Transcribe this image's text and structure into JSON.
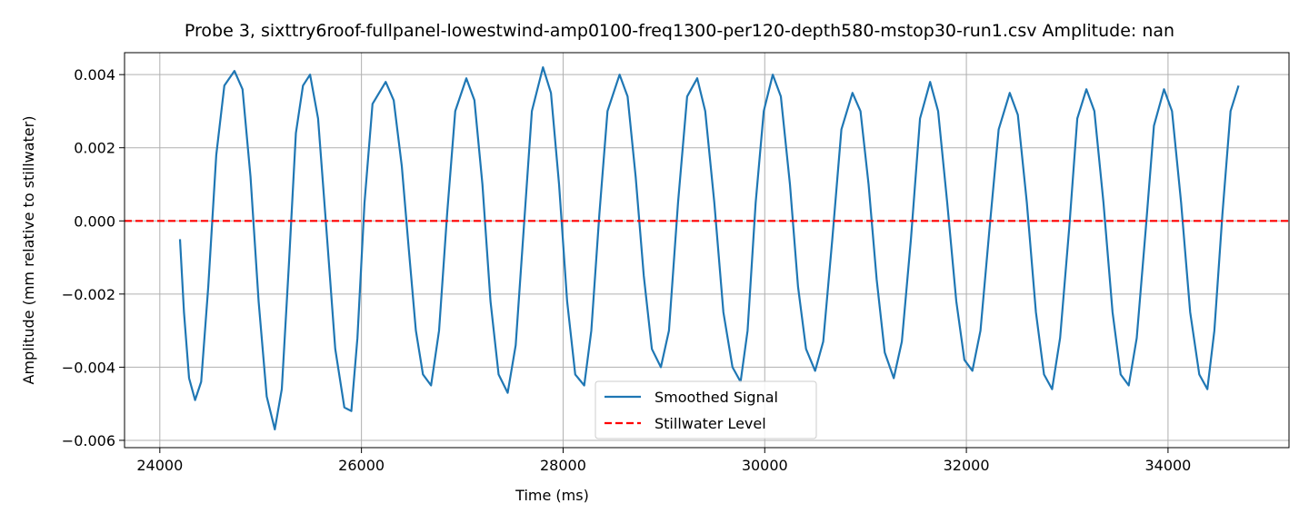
{
  "chart_data": {
    "type": "line",
    "title": "Probe 3, sixttry6roof-fullpanel-lowestwind-amp0100-freq1300-per120-depth580-mstop30-run1.csv Amplitude: nan",
    "xlabel": "Time (ms)",
    "ylabel": "Amplitude (mm relative to stillwater)",
    "xlim": [
      23650,
      35200
    ],
    "ylim": [
      -0.0062,
      0.0046
    ],
    "xticks": [
      24000,
      26000,
      28000,
      30000,
      32000,
      34000
    ],
    "xtick_labels": [
      "24000",
      "26000",
      "28000",
      "30000",
      "32000",
      "34000"
    ],
    "yticks": [
      -0.006,
      -0.004,
      -0.002,
      0.0,
      0.002,
      0.004
    ],
    "ytick_labels": [
      "−0.006",
      "−0.004",
      "−0.002",
      "0.000",
      "0.002",
      "0.004"
    ],
    "grid": true,
    "legend_position": "lower-center",
    "series": [
      {
        "name": "Smoothed Signal",
        "color": "#1f77b4",
        "style": "solid",
        "points": [
          [
            24200,
            -0.0005
          ],
          [
            24240,
            -0.0025
          ],
          [
            24290,
            -0.0043
          ],
          [
            24350,
            -0.0049
          ],
          [
            24410,
            -0.0044
          ],
          [
            24480,
            -0.0018
          ],
          [
            24560,
            0.0018
          ],
          [
            24640,
            0.0037
          ],
          [
            24740,
            0.0041
          ],
          [
            24820,
            0.0036
          ],
          [
            24900,
            0.0012
          ],
          [
            24980,
            -0.0022
          ],
          [
            25060,
            -0.0048
          ],
          [
            25140,
            -0.0057
          ],
          [
            25210,
            -0.0046
          ],
          [
            25280,
            -0.0012
          ],
          [
            25350,
            0.0024
          ],
          [
            25420,
            0.0037
          ],
          [
            25490,
            0.004
          ],
          [
            25570,
            0.0028
          ],
          [
            25660,
            -0.0005
          ],
          [
            25740,
            -0.0035
          ],
          [
            25830,
            -0.0051
          ],
          [
            25900,
            -0.0052
          ],
          [
            25960,
            -0.0032
          ],
          [
            26030,
            0.0005
          ],
          [
            26110,
            0.0032
          ],
          [
            26240,
            0.0038
          ],
          [
            26320,
            0.0033
          ],
          [
            26400,
            0.0015
          ],
          [
            26470,
            -0.0008
          ],
          [
            26540,
            -0.003
          ],
          [
            26610,
            -0.0042
          ],
          [
            26690,
            -0.0045
          ],
          [
            26770,
            -0.003
          ],
          [
            26850,
            0.0002
          ],
          [
            26930,
            0.003
          ],
          [
            27040,
            0.0039
          ],
          [
            27120,
            0.0033
          ],
          [
            27200,
            0.001
          ],
          [
            27280,
            -0.0022
          ],
          [
            27360,
            -0.0042
          ],
          [
            27450,
            -0.0047
          ],
          [
            27530,
            -0.0034
          ],
          [
            27610,
            -0.0002
          ],
          [
            27690,
            0.003
          ],
          [
            27800,
            0.0042
          ],
          [
            27880,
            0.0035
          ],
          [
            27960,
            0.001
          ],
          [
            28040,
            -0.0022
          ],
          [
            28120,
            -0.0042
          ],
          [
            28210,
            -0.0045
          ],
          [
            28280,
            -0.003
          ],
          [
            28360,
            0.0002
          ],
          [
            28440,
            0.003
          ],
          [
            28560,
            0.004
          ],
          [
            28640,
            0.0034
          ],
          [
            28720,
            0.0012
          ],
          [
            28800,
            -0.0015
          ],
          [
            28880,
            -0.0035
          ],
          [
            28970,
            -0.004
          ],
          [
            29050,
            -0.003
          ],
          [
            29140,
            0.0005
          ],
          [
            29230,
            0.0034
          ],
          [
            29330,
            0.0039
          ],
          [
            29410,
            0.003
          ],
          [
            29500,
            0.0005
          ],
          [
            29590,
            -0.0025
          ],
          [
            29680,
            -0.004
          ],
          [
            29760,
            -0.0044
          ],
          [
            29830,
            -0.003
          ],
          [
            29910,
            0.0005
          ],
          [
            29990,
            0.003
          ],
          [
            30080,
            0.004
          ],
          [
            30160,
            0.0034
          ],
          [
            30250,
            0.001
          ],
          [
            30330,
            -0.0018
          ],
          [
            30410,
            -0.0035
          ],
          [
            30500,
            -0.0041
          ],
          [
            30580,
            -0.0033
          ],
          [
            30670,
            -0.0005
          ],
          [
            30760,
            0.0025
          ],
          [
            30870,
            0.0035
          ],
          [
            30950,
            0.003
          ],
          [
            31030,
            0.001
          ],
          [
            31110,
            -0.0016
          ],
          [
            31190,
            -0.0036
          ],
          [
            31280,
            -0.0043
          ],
          [
            31360,
            -0.0033
          ],
          [
            31450,
            -0.0005
          ],
          [
            31540,
            0.0028
          ],
          [
            31640,
            0.0038
          ],
          [
            31720,
            0.003
          ],
          [
            31810,
            0.0005
          ],
          [
            31900,
            -0.0022
          ],
          [
            31980,
            -0.0038
          ],
          [
            32060,
            -0.0041
          ],
          [
            32140,
            -0.003
          ],
          [
            32230,
            -0.0002
          ],
          [
            32320,
            0.0025
          ],
          [
            32430,
            0.0035
          ],
          [
            32510,
            0.0029
          ],
          [
            32600,
            0.0005
          ],
          [
            32690,
            -0.0025
          ],
          [
            32770,
            -0.0042
          ],
          [
            32850,
            -0.0046
          ],
          [
            32930,
            -0.0032
          ],
          [
            33020,
            -0.0002
          ],
          [
            33100,
            0.0028
          ],
          [
            33190,
            0.0036
          ],
          [
            33270,
            0.003
          ],
          [
            33360,
            0.0005
          ],
          [
            33450,
            -0.0025
          ],
          [
            33530,
            -0.0042
          ],
          [
            33610,
            -0.0045
          ],
          [
            33690,
            -0.0032
          ],
          [
            33780,
            -0.0002
          ],
          [
            33860,
            0.0026
          ],
          [
            33960,
            0.0036
          ],
          [
            34040,
            0.003
          ],
          [
            34130,
            0.0005
          ],
          [
            34220,
            -0.0025
          ],
          [
            34310,
            -0.0042
          ],
          [
            34390,
            -0.0046
          ],
          [
            34460,
            -0.003
          ],
          [
            34540,
            0.0002
          ],
          [
            34620,
            0.003
          ],
          [
            34700,
            0.0037
          ]
        ]
      },
      {
        "name": "Stillwater Level",
        "color": "#ff0000",
        "style": "dashed",
        "points": [
          [
            23650,
            0.0
          ],
          [
            35200,
            0.0
          ]
        ]
      }
    ]
  }
}
